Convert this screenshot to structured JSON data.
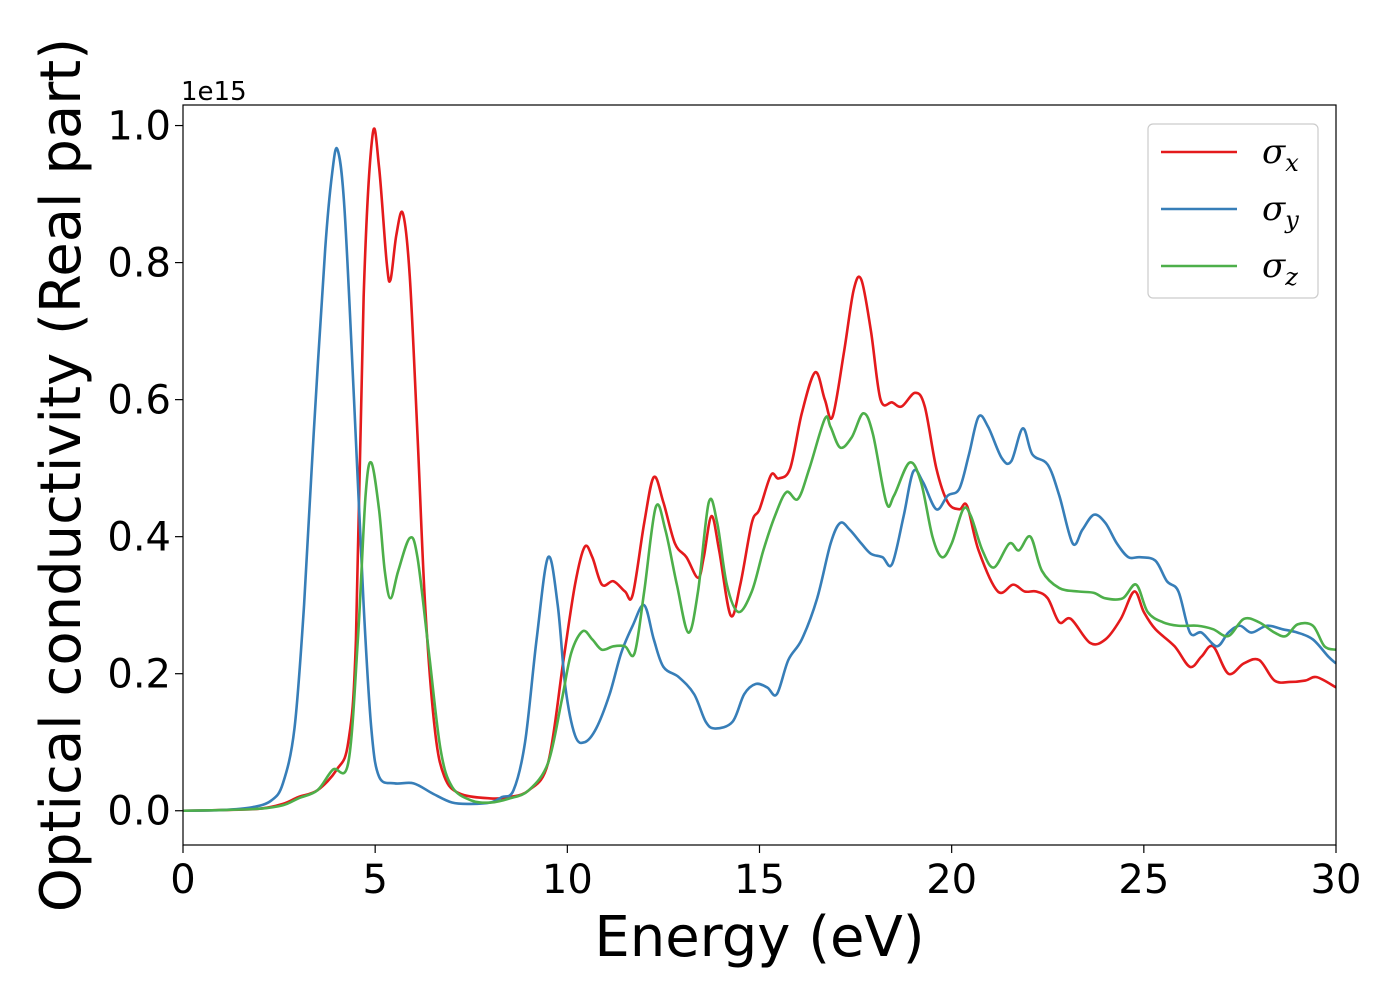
{
  "chart_data": {
    "type": "line",
    "title": "",
    "xlabel": "Energy (eV)",
    "ylabel": "Optical conductivity (Real part)",
    "y_offset_label": "1e15",
    "xlim": [
      0,
      30
    ],
    "ylim": [
      -0.05,
      1.03
    ],
    "xticks": [
      0,
      5,
      10,
      15,
      20,
      25,
      30
    ],
    "yticks": [
      0.0,
      0.2,
      0.4,
      0.6,
      0.8,
      1.0
    ],
    "xtick_labels": [
      "0",
      "5",
      "10",
      "15",
      "20",
      "25",
      "30"
    ],
    "ytick_labels": [
      "0.0",
      "0.2",
      "0.4",
      "0.6",
      "0.8",
      "1.0"
    ],
    "grid": false,
    "legend": "top-right",
    "series": [
      {
        "name": "σx",
        "symbol": "σ",
        "subscript": "x",
        "color": "#e41a1c",
        "points": [
          [
            0,
            0
          ],
          [
            1,
            0.001
          ],
          [
            2,
            0.003
          ],
          [
            2.6,
            0.01
          ],
          [
            3,
            0.02
          ],
          [
            3.5,
            0.03
          ],
          [
            4,
            0.06
          ],
          [
            4.3,
            0.1
          ],
          [
            4.5,
            0.25
          ],
          [
            4.7,
            0.75
          ],
          [
            4.93,
            0.985
          ],
          [
            5.1,
            0.94
          ],
          [
            5.3,
            0.8
          ],
          [
            5.4,
            0.775
          ],
          [
            5.55,
            0.84
          ],
          [
            5.72,
            0.872
          ],
          [
            5.9,
            0.78
          ],
          [
            6.1,
            0.55
          ],
          [
            6.3,
            0.3
          ],
          [
            6.55,
            0.12
          ],
          [
            6.8,
            0.05
          ],
          [
            7.2,
            0.025
          ],
          [
            8,
            0.018
          ],
          [
            8.5,
            0.02
          ],
          [
            9,
            0.03
          ],
          [
            9.5,
            0.07
          ],
          [
            9.9,
            0.22
          ],
          [
            10.2,
            0.33
          ],
          [
            10.45,
            0.385
          ],
          [
            10.65,
            0.37
          ],
          [
            10.9,
            0.33
          ],
          [
            11.2,
            0.335
          ],
          [
            11.5,
            0.32
          ],
          [
            11.7,
            0.315
          ],
          [
            12,
            0.42
          ],
          [
            12.25,
            0.487
          ],
          [
            12.5,
            0.45
          ],
          [
            12.8,
            0.39
          ],
          [
            13.1,
            0.37
          ],
          [
            13.4,
            0.34
          ],
          [
            13.55,
            0.37
          ],
          [
            13.75,
            0.43
          ],
          [
            13.95,
            0.38
          ],
          [
            14.25,
            0.285
          ],
          [
            14.5,
            0.33
          ],
          [
            14.8,
            0.42
          ],
          [
            15,
            0.44
          ],
          [
            15.3,
            0.49
          ],
          [
            15.5,
            0.485
          ],
          [
            15.8,
            0.5
          ],
          [
            16.1,
            0.58
          ],
          [
            16.45,
            0.64
          ],
          [
            16.7,
            0.6
          ],
          [
            16.9,
            0.575
          ],
          [
            17.2,
            0.67
          ],
          [
            17.45,
            0.76
          ],
          [
            17.65,
            0.775
          ],
          [
            17.9,
            0.7
          ],
          [
            18.15,
            0.6
          ],
          [
            18.45,
            0.596
          ],
          [
            18.7,
            0.59
          ],
          [
            19.05,
            0.61
          ],
          [
            19.3,
            0.59
          ],
          [
            19.6,
            0.5
          ],
          [
            19.9,
            0.45
          ],
          [
            20.2,
            0.44
          ],
          [
            20.4,
            0.445
          ],
          [
            20.7,
            0.38
          ],
          [
            21.2,
            0.32
          ],
          [
            21.6,
            0.33
          ],
          [
            21.9,
            0.32
          ],
          [
            22.2,
            0.32
          ],
          [
            22.5,
            0.31
          ],
          [
            22.8,
            0.275
          ],
          [
            23.1,
            0.28
          ],
          [
            23.6,
            0.245
          ],
          [
            24,
            0.25
          ],
          [
            24.4,
            0.28
          ],
          [
            24.75,
            0.32
          ],
          [
            25,
            0.29
          ],
          [
            25.3,
            0.265
          ],
          [
            25.8,
            0.24
          ],
          [
            26.2,
            0.21
          ],
          [
            26.5,
            0.225
          ],
          [
            26.8,
            0.24
          ],
          [
            27.2,
            0.2
          ],
          [
            27.6,
            0.215
          ],
          [
            28,
            0.22
          ],
          [
            28.4,
            0.19
          ],
          [
            28.8,
            0.188
          ],
          [
            29.2,
            0.19
          ],
          [
            29.5,
            0.195
          ],
          [
            30,
            0.18
          ]
        ]
      },
      {
        "name": "σy",
        "symbol": "σ",
        "subscript": "y",
        "color": "#377eb8",
        "points": [
          [
            0,
            0
          ],
          [
            1,
            0.001
          ],
          [
            1.8,
            0.005
          ],
          [
            2.3,
            0.015
          ],
          [
            2.6,
            0.04
          ],
          [
            2.9,
            0.12
          ],
          [
            3.15,
            0.3
          ],
          [
            3.4,
            0.55
          ],
          [
            3.7,
            0.82
          ],
          [
            3.88,
            0.93
          ],
          [
            4.02,
            0.965
          ],
          [
            4.2,
            0.88
          ],
          [
            4.45,
            0.6
          ],
          [
            4.7,
            0.3
          ],
          [
            4.9,
            0.12
          ],
          [
            5.1,
            0.05
          ],
          [
            5.5,
            0.04
          ],
          [
            6,
            0.04
          ],
          [
            6.5,
            0.025
          ],
          [
            7,
            0.012
          ],
          [
            7.5,
            0.01
          ],
          [
            8,
            0.012
          ],
          [
            8.3,
            0.02
          ],
          [
            8.6,
            0.03
          ],
          [
            8.9,
            0.1
          ],
          [
            9.2,
            0.25
          ],
          [
            9.5,
            0.37
          ],
          [
            9.75,
            0.3
          ],
          [
            9.95,
            0.18
          ],
          [
            10.2,
            0.11
          ],
          [
            10.45,
            0.1
          ],
          [
            10.75,
            0.12
          ],
          [
            11.1,
            0.17
          ],
          [
            11.4,
            0.23
          ],
          [
            11.7,
            0.27
          ],
          [
            12,
            0.3
          ],
          [
            12.25,
            0.25
          ],
          [
            12.5,
            0.21
          ],
          [
            12.9,
            0.195
          ],
          [
            13.3,
            0.17
          ],
          [
            13.6,
            0.13
          ],
          [
            13.85,
            0.12
          ],
          [
            14.3,
            0.13
          ],
          [
            14.6,
            0.17
          ],
          [
            14.9,
            0.185
          ],
          [
            15.2,
            0.18
          ],
          [
            15.45,
            0.17
          ],
          [
            15.75,
            0.22
          ],
          [
            16.1,
            0.25
          ],
          [
            16.5,
            0.31
          ],
          [
            16.85,
            0.39
          ],
          [
            17.1,
            0.42
          ],
          [
            17.35,
            0.41
          ],
          [
            17.65,
            0.39
          ],
          [
            17.9,
            0.375
          ],
          [
            18.2,
            0.37
          ],
          [
            18.45,
            0.36
          ],
          [
            18.75,
            0.43
          ],
          [
            19,
            0.495
          ],
          [
            19.25,
            0.48
          ],
          [
            19.6,
            0.44
          ],
          [
            19.9,
            0.46
          ],
          [
            20.2,
            0.47
          ],
          [
            20.45,
            0.52
          ],
          [
            20.7,
            0.575
          ],
          [
            20.95,
            0.56
          ],
          [
            21.3,
            0.515
          ],
          [
            21.55,
            0.51
          ],
          [
            21.85,
            0.558
          ],
          [
            22.1,
            0.52
          ],
          [
            22.5,
            0.505
          ],
          [
            22.8,
            0.46
          ],
          [
            23.15,
            0.39
          ],
          [
            23.4,
            0.41
          ],
          [
            23.7,
            0.432
          ],
          [
            24,
            0.42
          ],
          [
            24.3,
            0.39
          ],
          [
            24.6,
            0.37
          ],
          [
            24.9,
            0.37
          ],
          [
            25.3,
            0.365
          ],
          [
            25.6,
            0.335
          ],
          [
            25.9,
            0.32
          ],
          [
            26.2,
            0.26
          ],
          [
            26.5,
            0.26
          ],
          [
            26.9,
            0.24
          ],
          [
            27.2,
            0.26
          ],
          [
            27.5,
            0.27
          ],
          [
            27.8,
            0.26
          ],
          [
            28.2,
            0.27
          ],
          [
            28.6,
            0.265
          ],
          [
            29,
            0.26
          ],
          [
            29.4,
            0.25
          ],
          [
            29.8,
            0.225
          ],
          [
            30,
            0.215
          ]
        ]
      },
      {
        "name": "σz",
        "symbol": "σ",
        "subscript": "z",
        "color": "#4daf4a",
        "points": [
          [
            0,
            0
          ],
          [
            1,
            0.001
          ],
          [
            2,
            0.003
          ],
          [
            2.6,
            0.008
          ],
          [
            3,
            0.018
          ],
          [
            3.5,
            0.03
          ],
          [
            3.9,
            0.06
          ],
          [
            4.3,
            0.07
          ],
          [
            4.55,
            0.25
          ],
          [
            4.75,
            0.46
          ],
          [
            4.9,
            0.508
          ],
          [
            5.1,
            0.44
          ],
          [
            5.25,
            0.35
          ],
          [
            5.4,
            0.31
          ],
          [
            5.6,
            0.35
          ],
          [
            5.9,
            0.398
          ],
          [
            6.1,
            0.37
          ],
          [
            6.4,
            0.23
          ],
          [
            6.7,
            0.09
          ],
          [
            7,
            0.035
          ],
          [
            7.5,
            0.015
          ],
          [
            8,
            0.012
          ],
          [
            8.5,
            0.018
          ],
          [
            9,
            0.03
          ],
          [
            9.5,
            0.07
          ],
          [
            9.85,
            0.16
          ],
          [
            10.1,
            0.23
          ],
          [
            10.4,
            0.262
          ],
          [
            10.65,
            0.25
          ],
          [
            10.9,
            0.235
          ],
          [
            11.2,
            0.24
          ],
          [
            11.5,
            0.24
          ],
          [
            11.75,
            0.23
          ],
          [
            12,
            0.32
          ],
          [
            12.3,
            0.443
          ],
          [
            12.55,
            0.41
          ],
          [
            12.85,
            0.33
          ],
          [
            13.15,
            0.26
          ],
          [
            13.4,
            0.32
          ],
          [
            13.68,
            0.45
          ],
          [
            13.9,
            0.42
          ],
          [
            14.15,
            0.33
          ],
          [
            14.45,
            0.29
          ],
          [
            14.8,
            0.32
          ],
          [
            15.1,
            0.38
          ],
          [
            15.4,
            0.43
          ],
          [
            15.7,
            0.465
          ],
          [
            16,
            0.455
          ],
          [
            16.3,
            0.5
          ],
          [
            16.7,
            0.572
          ],
          [
            16.85,
            0.56
          ],
          [
            17.1,
            0.53
          ],
          [
            17.4,
            0.545
          ],
          [
            17.7,
            0.58
          ],
          [
            17.95,
            0.55
          ],
          [
            18.3,
            0.45
          ],
          [
            18.5,
            0.46
          ],
          [
            18.9,
            0.508
          ],
          [
            19.2,
            0.48
          ],
          [
            19.5,
            0.4
          ],
          [
            19.75,
            0.37
          ],
          [
            20,
            0.39
          ],
          [
            20.3,
            0.44
          ],
          [
            20.5,
            0.43
          ],
          [
            20.8,
            0.38
          ],
          [
            21.1,
            0.355
          ],
          [
            21.5,
            0.39
          ],
          [
            21.75,
            0.38
          ],
          [
            22.05,
            0.4
          ],
          [
            22.35,
            0.35
          ],
          [
            22.8,
            0.325
          ],
          [
            23.3,
            0.32
          ],
          [
            23.7,
            0.318
          ],
          [
            24,
            0.31
          ],
          [
            24.45,
            0.31
          ],
          [
            24.8,
            0.33
          ],
          [
            25.1,
            0.29
          ],
          [
            25.5,
            0.275
          ],
          [
            25.9,
            0.27
          ],
          [
            26.4,
            0.27
          ],
          [
            26.8,
            0.265
          ],
          [
            27.2,
            0.255
          ],
          [
            27.6,
            0.28
          ],
          [
            28,
            0.275
          ],
          [
            28.4,
            0.26
          ],
          [
            28.7,
            0.255
          ],
          [
            29,
            0.272
          ],
          [
            29.4,
            0.27
          ],
          [
            29.7,
            0.24
          ],
          [
            30,
            0.235
          ]
        ]
      }
    ]
  }
}
